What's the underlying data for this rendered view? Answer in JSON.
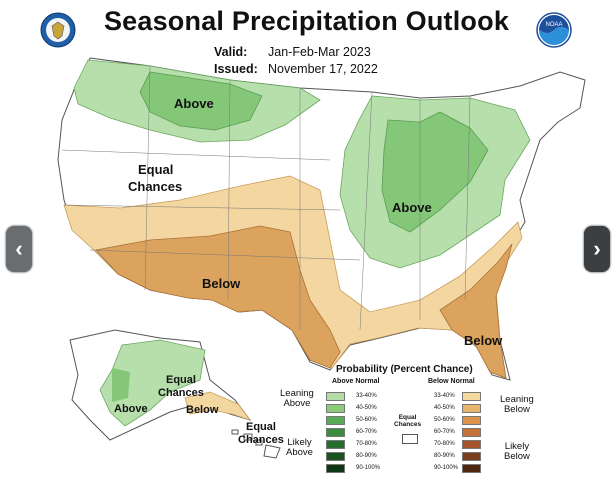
{
  "title": "Seasonal Precipitation Outlook",
  "valid": {
    "label": "Valid:",
    "value": "Jan-Feb-Mar 2023"
  },
  "issued": {
    "label": "Issued:",
    "value": "November 17, 2022"
  },
  "logos": {
    "left": "doc-seal",
    "right": "noaa"
  },
  "noaa_text": "NOAA",
  "map_labels": {
    "above_north": "Above",
    "equal_west_1": "Equal",
    "equal_west_2": "Chances",
    "above_east": "Above",
    "below_south": "Below",
    "below_se": "Below",
    "ak_above": "Above",
    "ak_equal_1": "Equal",
    "ak_equal_2": "Chances",
    "ak_below": "Below",
    "hi_equal_1": "Equal",
    "hi_equal_2": "Chances"
  },
  "legend": {
    "title": "Probability (Percent Chance)",
    "above_header": "Above Normal",
    "below_header": "Below Normal",
    "above_bins": [
      "33-40%",
      "40-50%",
      "50-60%",
      "60-70%",
      "70-80%",
      "80-90%",
      "90-100%"
    ],
    "below_bins": [
      "33-40%",
      "40-50%",
      "50-60%",
      "60-70%",
      "70-80%",
      "80-90%",
      "90-100%"
    ],
    "above_colors": [
      "#b3dca8",
      "#8ccb7c",
      "#58aa55",
      "#3a8c3e",
      "#276d2c",
      "#1a5220",
      "#0e3614"
    ],
    "below_colors": [
      "#f3d9a0",
      "#e8b56e",
      "#d9934c",
      "#c47238",
      "#a4552b",
      "#7a3e20",
      "#4d2612"
    ],
    "leaning_above": [
      "Leaning",
      "Above"
    ],
    "likely_above": [
      "Likely",
      "Above"
    ],
    "leaning_below": [
      "Leaning",
      "Below"
    ],
    "likely_below": [
      "Likely",
      "Below"
    ],
    "equal_chances": [
      "Equal",
      "Chances"
    ]
  },
  "colors": {
    "above": "#a9d79c",
    "above_strong": "#7cc46d",
    "below_light": "#f2d29a",
    "below": "#dca35e"
  },
  "nav": {
    "prev": "‹",
    "next": "›"
  }
}
